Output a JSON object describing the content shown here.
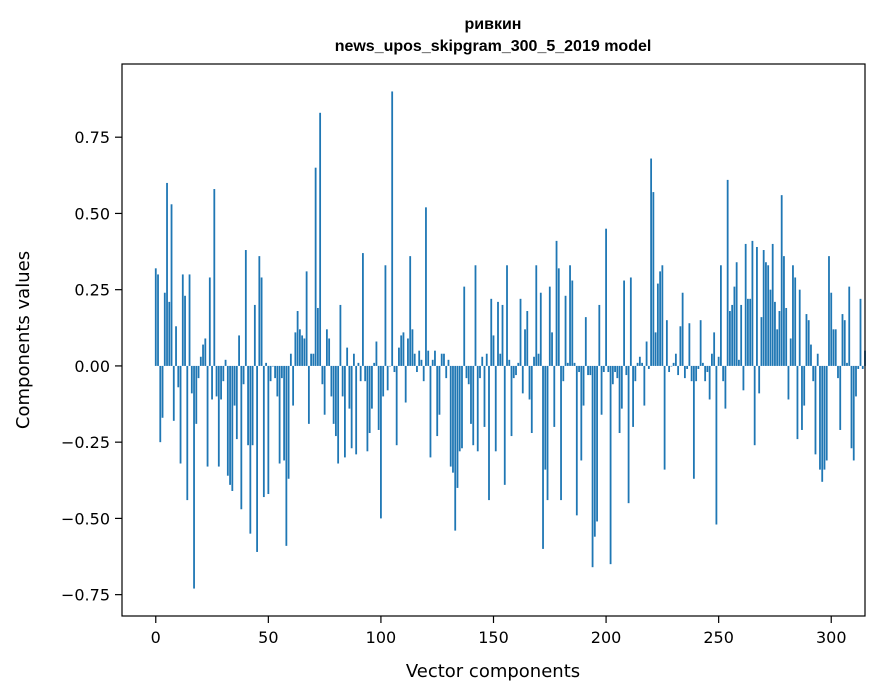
{
  "chart_data": {
    "type": "bar",
    "title_line1": "ривкин",
    "title_line2": "news_upos_skipgram_300_5_2019 model",
    "xlabel": "Vector components",
    "ylabel": "Components values",
    "xlim": [
      -15,
      315
    ],
    "ylim": [
      -0.82,
      0.99
    ],
    "xticks": [
      0,
      50,
      100,
      150,
      200,
      250,
      300
    ],
    "xtick_labels": [
      "0",
      "50",
      "100",
      "150",
      "200",
      "250",
      "300"
    ],
    "yticks": [
      -0.75,
      -0.5,
      -0.25,
      0.0,
      0.25,
      0.5,
      0.75
    ],
    "ytick_labels": [
      "−0.75",
      "−0.50",
      "−0.25",
      "0.00",
      "0.25",
      "0.50",
      "0.75"
    ],
    "bar_color": "#1f77b4",
    "series": [
      {
        "name": "ривкин",
        "values": [
          0.32,
          0.3,
          -0.25,
          -0.17,
          0.24,
          0.6,
          0.21,
          0.53,
          -0.18,
          0.13,
          -0.07,
          -0.32,
          0.3,
          0.23,
          -0.44,
          0.3,
          -0.09,
          -0.73,
          -0.19,
          -0.04,
          0.03,
          0.07,
          0.09,
          -0.33,
          0.29,
          -0.11,
          0.58,
          -0.1,
          -0.33,
          -0.11,
          -0.05,
          0.02,
          -0.36,
          -0.39,
          -0.41,
          -0.13,
          -0.24,
          0.1,
          -0.47,
          -0.06,
          0.38,
          -0.26,
          -0.55,
          -0.26,
          0.2,
          -0.61,
          0.36,
          0.29,
          -0.43,
          0.01,
          -0.42,
          -0.05,
          0.0,
          -0.04,
          -0.1,
          -0.32,
          -0.04,
          -0.31,
          -0.59,
          -0.37,
          0.04,
          -0.13,
          0.11,
          0.18,
          0.12,
          0.1,
          0.09,
          0.31,
          -0.19,
          0.04,
          0.04,
          0.65,
          0.19,
          0.83,
          -0.06,
          -0.16,
          0.12,
          0.09,
          -0.1,
          -0.19,
          -0.23,
          -0.32,
          0.2,
          -0.1,
          -0.3,
          0.06,
          -0.14,
          -0.27,
          0.04,
          -0.29,
          0.01,
          -0.05,
          0.37,
          -0.05,
          -0.28,
          -0.22,
          -0.14,
          0.01,
          0.08,
          -0.21,
          -0.5,
          -0.1,
          0.33,
          -0.08,
          0.0,
          0.9,
          -0.02,
          -0.26,
          0.06,
          0.1,
          0.11,
          -0.12,
          0.09,
          0.36,
          0.12,
          0.04,
          -0.02,
          0.05,
          0.02,
          -0.05,
          0.52,
          0.05,
          -0.3,
          0.02,
          0.05,
          -0.23,
          -0.16,
          0.04,
          0.04,
          -0.04,
          0.02,
          -0.33,
          -0.35,
          -0.54,
          -0.4,
          -0.28,
          -0.27,
          0.26,
          -0.04,
          -0.06,
          -0.19,
          -0.26,
          0.33,
          -0.28,
          -0.04,
          0.03,
          -0.2,
          0.04,
          -0.44,
          0.22,
          0.1,
          -0.28,
          0.21,
          0.04,
          0.2,
          -0.39,
          0.33,
          0.02,
          -0.23,
          -0.04,
          -0.03,
          0.01,
          0.22,
          -0.09,
          0.12,
          0.18,
          -0.11,
          -0.22,
          0.03,
          0.33,
          0.04,
          0.24,
          -0.6,
          -0.34,
          -0.44,
          0.26,
          0.11,
          -0.2,
          0.41,
          0.32,
          -0.44,
          -0.05,
          0.23,
          0.01,
          0.33,
          0.28,
          0.01,
          -0.49,
          -0.02,
          -0.31,
          -0.13,
          0.16,
          -0.03,
          -0.03,
          -0.66,
          -0.56,
          -0.51,
          0.2,
          -0.16,
          -0.02,
          0.45,
          -0.02,
          -0.65,
          -0.06,
          -0.02,
          -0.04,
          -0.22,
          -0.14,
          0.28,
          -0.03,
          -0.45,
          0.29,
          -0.2,
          -0.05,
          0.01,
          0.03,
          0.01,
          -0.13,
          0.08,
          -0.01,
          0.68,
          0.57,
          0.11,
          0.27,
          0.31,
          0.33,
          -0.34,
          0.15,
          -0.02,
          0.0,
          0.01,
          0.04,
          -0.03,
          0.13,
          0.24,
          -0.04,
          -0.01,
          0.14,
          -0.05,
          -0.37,
          -0.05,
          -0.01,
          0.15,
          0.01,
          -0.05,
          -0.02,
          -0.11,
          0.04,
          0.11,
          -0.52,
          0.03,
          0.33,
          -0.05,
          -0.14,
          0.61,
          0.18,
          0.2,
          0.26,
          0.34,
          0.02,
          0.2,
          -0.08,
          0.4,
          0.22,
          0.22,
          0.41,
          -0.26,
          0.39,
          -0.09,
          0.16,
          0.38,
          0.34,
          0.33,
          0.25,
          0.4,
          0.21,
          0.12,
          0.18,
          0.56,
          0.36,
          0.19,
          -0.11,
          0.09,
          0.33,
          0.29,
          -0.24,
          0.25,
          -0.21,
          -0.13,
          0.17,
          0.15,
          0.07,
          -0.05,
          -0.29,
          0.04,
          -0.34,
          -0.38,
          -0.34,
          -0.31,
          0.36,
          0.24,
          0.12,
          0.12,
          -0.04,
          -0.21,
          0.17,
          0.15,
          0.01,
          0.26,
          -0.27,
          -0.31,
          -0.1,
          -0.01,
          0.22,
          -0.01,
          0.05
        ]
      }
    ]
  }
}
